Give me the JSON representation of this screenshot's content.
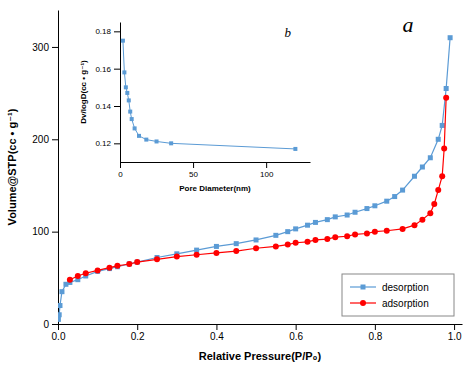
{
  "chart_data": [
    {
      "type": "line",
      "xlabel": "Relative Pressure(P/P₀)",
      "ylabel": "Volume@STP(cc • g⁻¹)",
      "annotations": [
        "a"
      ],
      "xlim": [
        0,
        1.02
      ],
      "ylim": [
        0,
        340
      ],
      "xticks": [
        {
          "value": 0.0,
          "label": "0.0"
        },
        0.2,
        0.4,
        0.6,
        0.8,
        {
          "value": 1.0,
          "label": "1.0"
        }
      ],
      "yticks": [
        0,
        100,
        200,
        300
      ],
      "legend": "lower right",
      "series": [
        {
          "name": "desorption",
          "color": "#5B9BD5",
          "marker": "square",
          "x": [
            0.001,
            0.003,
            0.005,
            0.01,
            0.02,
            0.03,
            0.05,
            0.07,
            0.1,
            0.13,
            0.15,
            0.18,
            0.2,
            0.25,
            0.3,
            0.35,
            0.4,
            0.45,
            0.5,
            0.55,
            0.58,
            0.6,
            0.63,
            0.65,
            0.68,
            0.7,
            0.73,
            0.75,
            0.78,
            0.8,
            0.83,
            0.85,
            0.87,
            0.9,
            0.92,
            0.94,
            0.96,
            0.97,
            0.98,
            0.99
          ],
          "values": [
            5,
            10,
            20,
            35,
            43,
            45,
            48,
            52,
            57,
            60,
            62,
            65,
            67,
            72,
            76,
            80,
            84,
            87,
            91,
            96,
            100,
            103,
            107,
            110,
            113,
            116,
            118,
            121,
            125,
            128,
            133,
            138,
            145,
            160,
            170,
            180,
            200,
            215,
            255,
            310
          ]
        },
        {
          "name": "adsorption",
          "color": "#FF0000",
          "marker": "circle",
          "x": [
            0.03,
            0.05,
            0.07,
            0.1,
            0.13,
            0.15,
            0.18,
            0.2,
            0.25,
            0.3,
            0.35,
            0.4,
            0.45,
            0.5,
            0.55,
            0.58,
            0.6,
            0.63,
            0.65,
            0.68,
            0.7,
            0.73,
            0.75,
            0.78,
            0.8,
            0.83,
            0.87,
            0.9,
            0.92,
            0.94,
            0.95,
            0.96,
            0.97,
            0.975,
            0.98
          ],
          "values": [
            48,
            52,
            55,
            58,
            61,
            63,
            65,
            67,
            70,
            73,
            75,
            77,
            79,
            82,
            84,
            86,
            88,
            89,
            91,
            92,
            94,
            95,
            97,
            98,
            100,
            101,
            103,
            107,
            113,
            120,
            130,
            145,
            160,
            190,
            245
          ]
        }
      ]
    },
    {
      "type": "line",
      "xlabel": "Pore Diameter(nm)",
      "ylabel": "Dv/logD(cc • g⁻¹)",
      "annotations": [
        "b"
      ],
      "xlim": [
        0,
        130
      ],
      "ylim": [
        0.11,
        0.185
      ],
      "xticks": [
        0,
        50,
        100
      ],
      "yticks": [
        0.12,
        0.14,
        0.16,
        0.18
      ],
      "series": [
        {
          "color": "#5B9BD5",
          "marker": "square",
          "x": [
            2,
            3,
            4,
            5,
            6,
            7,
            8,
            10,
            13,
            18,
            25,
            35,
            120
          ],
          "values": [
            0.175,
            0.158,
            0.15,
            0.147,
            0.143,
            0.137,
            0.133,
            0.128,
            0.124,
            0.122,
            0.121,
            0.12,
            0.117
          ]
        }
      ]
    }
  ]
}
